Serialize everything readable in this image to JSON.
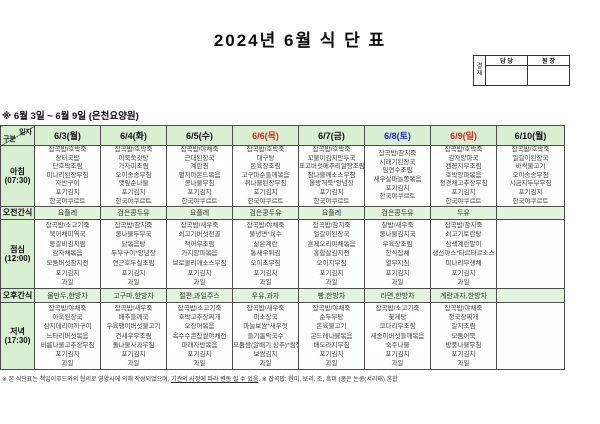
{
  "title": "2024년 6월 식 단 표",
  "subtitle": "※ 6월 3일 ~ 6월 9일 (은천요양원)",
  "approval": {
    "stamp": "결재",
    "cols": [
      "담 당",
      "원 장"
    ]
  },
  "colors": {
    "holiday": "#e8251a",
    "saturday": "#2323d6",
    "header_bg": "#d9efd2",
    "snack_bg": "#e3f4dc"
  },
  "table": {
    "corner": {
      "top": "일자",
      "bottom": "구분"
    },
    "columns": [
      {
        "label": "6/3(월)"
      },
      {
        "label": "6/4(화)"
      },
      {
        "label": "6/5(수)"
      },
      {
        "label": "6/6(목)",
        "color": "holiday"
      },
      {
        "label": "6/7(금)"
      },
      {
        "label": "6/8(토)",
        "color": "saturday"
      },
      {
        "label": "6/9(일)",
        "color": "holiday"
      },
      {
        "label": "6/10(월)"
      }
    ],
    "rows": [
      {
        "key": "breakfast",
        "label": "아침",
        "time": "(07:30)",
        "cells": [
          [
            "잡곡밥/호박죽",
            "장터국밥",
            "단호박조림",
            "미나리된장무침",
            "자반구이",
            "포기김치",
            "한국야쿠르트"
          ],
          [
            "잡곡밥/호박죽",
            "어묵쑥갓탕",
            "가자미조림",
            "오이송송무침",
            "깻잎순나물",
            "포기김치",
            "한국야쿠르트"
          ],
          [
            "잡곡밥/야채죽",
            "근대된장국",
            "계란찜",
            "멸치아몬드볶음",
            "콩나물무침",
            "포기김치",
            "한국야쿠르트"
          ],
          [
            "잡곡밥/호박죽",
            "대구탕",
            "돈육장조림",
            "고구마순들깨볶음",
            "취나물된장무침",
            "포기김치",
            "한국야쿠르트"
          ],
          [
            "잡곡밥/호박죽",
            "꼬물이김치만두국",
            "표고버섯메추리알장조림",
            "참나물깨소스무침",
            "올방개묵*양념장",
            "포기김치",
            "한국야쿠르트"
          ],
          [
            "잡곡밥/참치죽",
            "시래기된장국",
            "임연수조림",
            "새우살마늘쫑볶음",
            "포기김치",
            "한국야쿠르트"
          ],
          [
            "잡곡밥/호박죽",
            "감자양파국",
            "캔꽁치무조림",
            "호박양파볶음",
            "청경채고추장무침",
            "포기김치",
            "한국야쿠르트"
          ],
          [
            "잡곡밥/호박죽",
            "얼갈이된장국",
            "바싹불고기",
            "오이송송무침",
            "시금치두부무침",
            "포기김치",
            "한국야쿠르트"
          ]
        ]
      },
      {
        "key": "amsnack",
        "label": "오전간식",
        "cells": [
          "요플레",
          "검은콩두유",
          "요플레",
          "검은콩두유",
          "요플레",
          "검은콩두유",
          "두유",
          ""
        ]
      },
      {
        "key": "lunch",
        "label": "점심",
        "time": "(12:00)",
        "cells": [
          [
            "잡곡밥/소고기죽",
            "북어채미역국",
            "등갈비김치찜",
            "감자채볶음",
            "모둠버섯참치전",
            "포기김치",
            "과일"
          ],
          [
            "잡곡밥/참치죽",
            "콩나물두부국",
            "닭볶음탕",
            "두부구이*양념장",
            "연근호두실조림",
            "포기김치",
            "과일"
          ],
          [
            "잡곡밥/새우죽",
            "쇠고기버섯전골",
            "적어무조림",
            "가지양파볶음",
            "브로콜리깨소스무침",
            "포기김치",
            "과일"
          ],
          [
            "잡곡밥/야채죽",
            "물냉면*육수",
            "삶은계란",
            "통새우튀김",
            "오이초무침",
            "포기김치",
            "과일"
          ],
          [
            "잡곡밥/참치죽",
            "얼갈이된장국",
            "훈제오리야채볶음",
            "홍합살김치전",
            "오이지무침",
            "포기김치",
            "과일"
          ],
          [
            "찰밥/새우죽",
            "콩나물김치국",
            "우육장조림",
            "한식잡채",
            "열무지짐",
            "포기김치",
            "과일"
          ],
          [
            "잡곡밥/참치죽",
            "쇠고기토란탕",
            "삼색계란말이",
            "생선까스*타르타르소스",
            "미나리무생채",
            "포기김치",
            "과일"
          ],
          []
        ]
      },
      {
        "key": "pmsnack",
        "label": "오후간식",
        "cells": [
          "물만두,한방차",
          "고구마,한방차",
          "절편,과일주스",
          "우유,과자",
          "빵,한방차",
          "라면,한방차",
          "계란과자,한방차",
          ""
        ]
      },
      {
        "key": "dinner",
        "label": "저녁",
        "time": "(17:30)",
        "cells": [
          [
            "잡곡밥/야채죽",
            "아욱된장국",
            "삼치데리야끼구이",
            "느타리버섯볶음",
            "비름나물고추장무침",
            "포기김치",
            "과일"
          ],
          [
            "잡곡밥/새우죽",
            "배추들깨국",
            "우육팽이버섯불고기",
            "건새우무조림",
            "돌나물사과무침",
            "포기김치",
            "과일"
          ],
          [
            "잡곡밥/소고기죽",
            "호박고추장찌개",
            "오징어볶음",
            "옥수수콘찹쌀야채전",
            "파래자반볶음",
            "포기김치",
            "과일"
          ],
          [
            "잡곡밥/새우죽",
            "미소장국",
            "마늘보쌈*새우젓",
            "들기름막국수",
            "모둠쌈(알배기,상추)*쌈장",
            "보쌈김치",
            "과일"
          ],
          [
            "잡곡밥/야채죽",
            "순두부탕",
            "돈육불고기",
            "곤드레나물볶음",
            "배도라지무침",
            "포기김치",
            "과일"
          ],
          [
            "잡곡밥/소고기죽",
            "꽃게탕",
            "코다리무조림",
            "새송이버섯들깨볶음",
            "숙주나물",
            "포기김치",
            "과일"
          ],
          [
            "잡곡밥/야채죽",
            "청국장찌개",
            "갈치조림",
            "모둠어묵",
            "방풍나물무침",
            "포기김치",
            "과일"
          ],
          []
        ]
      }
    ]
  },
  "footer": {
    "pre": "※ 본 식단표는 책임이푸드와의 협의로 영양사에 의해 작성되었으며, ",
    "underline": "기관의 사정에 따라 변동 될 수 있음",
    "post": ". ※ 잡곡밥: 현미, 보리, 조, 흑미 (콩은 논콩(서리태) 혼합"
  }
}
